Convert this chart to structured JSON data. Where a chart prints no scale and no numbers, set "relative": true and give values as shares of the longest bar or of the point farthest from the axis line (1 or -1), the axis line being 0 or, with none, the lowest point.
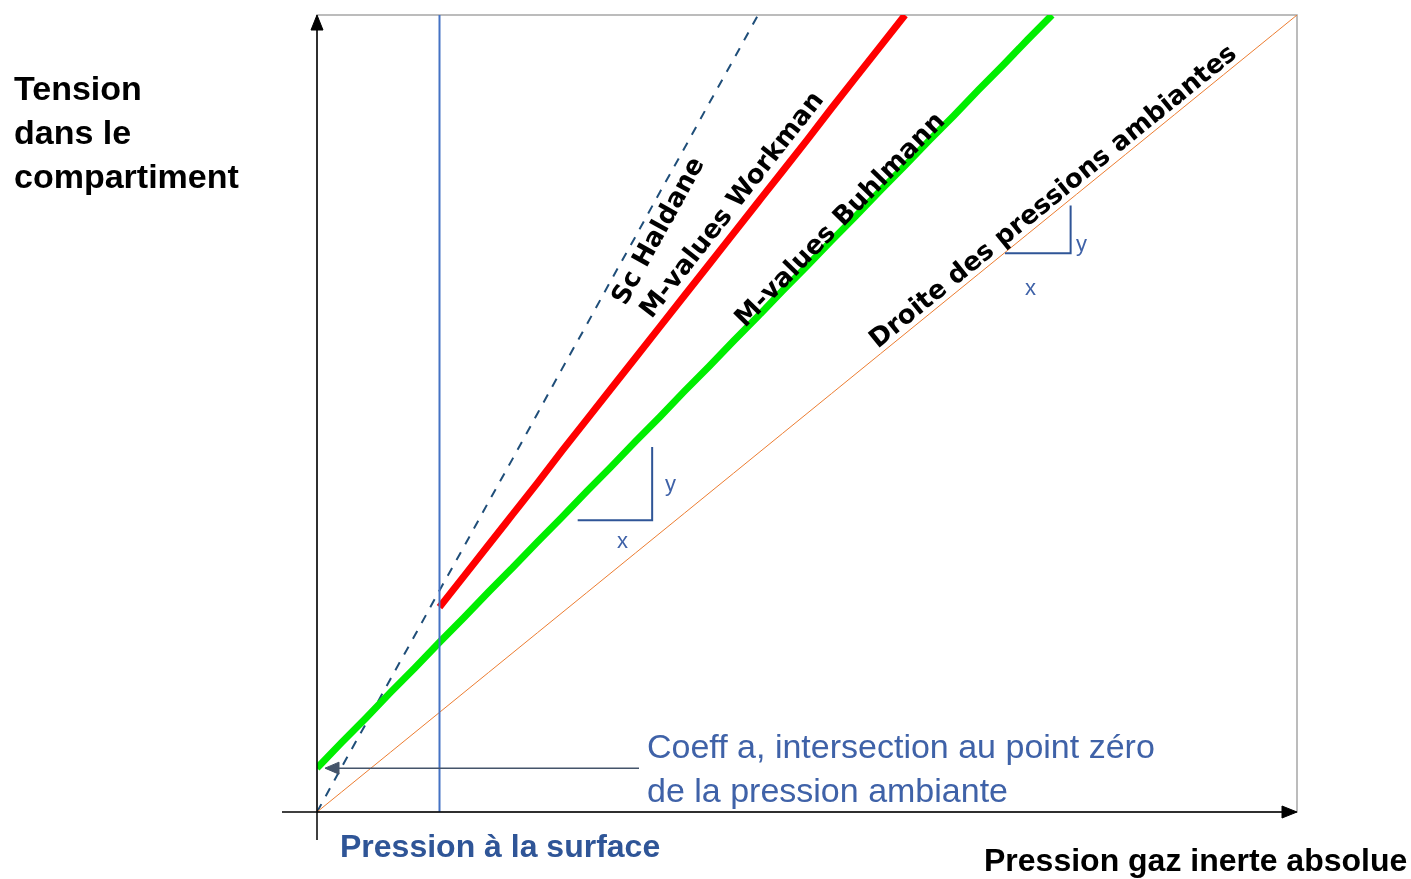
{
  "chart_data": {
    "type": "line",
    "relative": true,
    "legend": false,
    "marker": "none",
    "ylabel": "Tension dans le compartiment",
    "xlabel": "Pression gaz inerte absolue",
    "categories": [
      null,
      null,
      null,
      null,
      null,
      null,
      null,
      null,
      null,
      null,
      null,
      null,
      null,
      null,
      null,
      null,
      null,
      null,
      null,
      null,
      null,
      null,
      null,
      null,
      null,
      null,
      null,
      null,
      null,
      null,
      null,
      null,
      null,
      null,
      null,
      null,
      null,
      null,
      null,
      null,
      null
    ],
    "series": [
      {
        "name": "Sc Haldane",
        "color": "#1f4e79",
        "line_style": "dashed",
        "values": [
          0,
          0.056,
          0.111,
          0.167,
          0.222,
          0.278,
          0.333,
          0.389,
          0.444,
          0.5,
          0.556,
          0.611,
          0.667,
          0.722,
          0.778,
          0.833,
          0.889,
          0.944,
          1,
          null,
          null,
          null,
          null,
          null,
          null,
          null,
          null,
          null,
          null,
          null,
          null,
          null,
          null,
          null,
          null,
          null,
          null,
          null,
          null,
          null,
          null
        ]
      },
      {
        "name": "M-values Workman",
        "color": "#ff0000",
        "line_style": "solid",
        "values": [
          null,
          null,
          null,
          null,
          null,
          0.257,
          0.296,
          0.335,
          0.374,
          0.413,
          0.453,
          0.492,
          0.531,
          0.57,
          0.609,
          0.648,
          0.687,
          0.726,
          0.765,
          0.804,
          0.843,
          0.883,
          0.922,
          0.961,
          1,
          null,
          null,
          null,
          null,
          null,
          null,
          null,
          null,
          null,
          null,
          null,
          null,
          null,
          null,
          null,
          null
        ]
      },
      {
        "name": "M-values Buhlmann",
        "color": "#00ee00",
        "line_style": "solid",
        "values": [
          0.055,
          0.087,
          0.118,
          0.15,
          0.181,
          0.213,
          0.244,
          0.276,
          0.307,
          0.339,
          0.37,
          0.402,
          0.433,
          0.465,
          0.496,
          0.528,
          0.559,
          0.591,
          0.622,
          0.654,
          0.685,
          0.717,
          0.748,
          0.78,
          0.811,
          0.843,
          0.874,
          0.906,
          0.937,
          0.969,
          1,
          null,
          null,
          null,
          null,
          null,
          null,
          null,
          null,
          null,
          null
        ]
      },
      {
        "name": "Droite des pressions ambiantes",
        "color": "#ed7d31",
        "line_style": "solid",
        "values": [
          0,
          0.025,
          0.05,
          0.075,
          0.1,
          0.125,
          0.15,
          0.175,
          0.2,
          0.225,
          0.25,
          0.275,
          0.3,
          0.325,
          0.35,
          0.375,
          0.4,
          0.425,
          0.45,
          0.475,
          0.5,
          0.525,
          0.55,
          0.575,
          0.6,
          0.625,
          0.65,
          0.675,
          0.7,
          0.725,
          0.75,
          0.775,
          0.8,
          0.825,
          0.85,
          0.875,
          0.9,
          0.925,
          0.95,
          0.975,
          1
        ]
      }
    ],
    "ref_lines": [
      {
        "axis": "x",
        "label": "Pression à la surface",
        "color": "#4472c4"
      }
    ],
    "annotations": [
      "Coeff a, intersection au point zéro de la pression ambiante",
      "y",
      "x",
      "y",
      "x"
    ]
  }
}
